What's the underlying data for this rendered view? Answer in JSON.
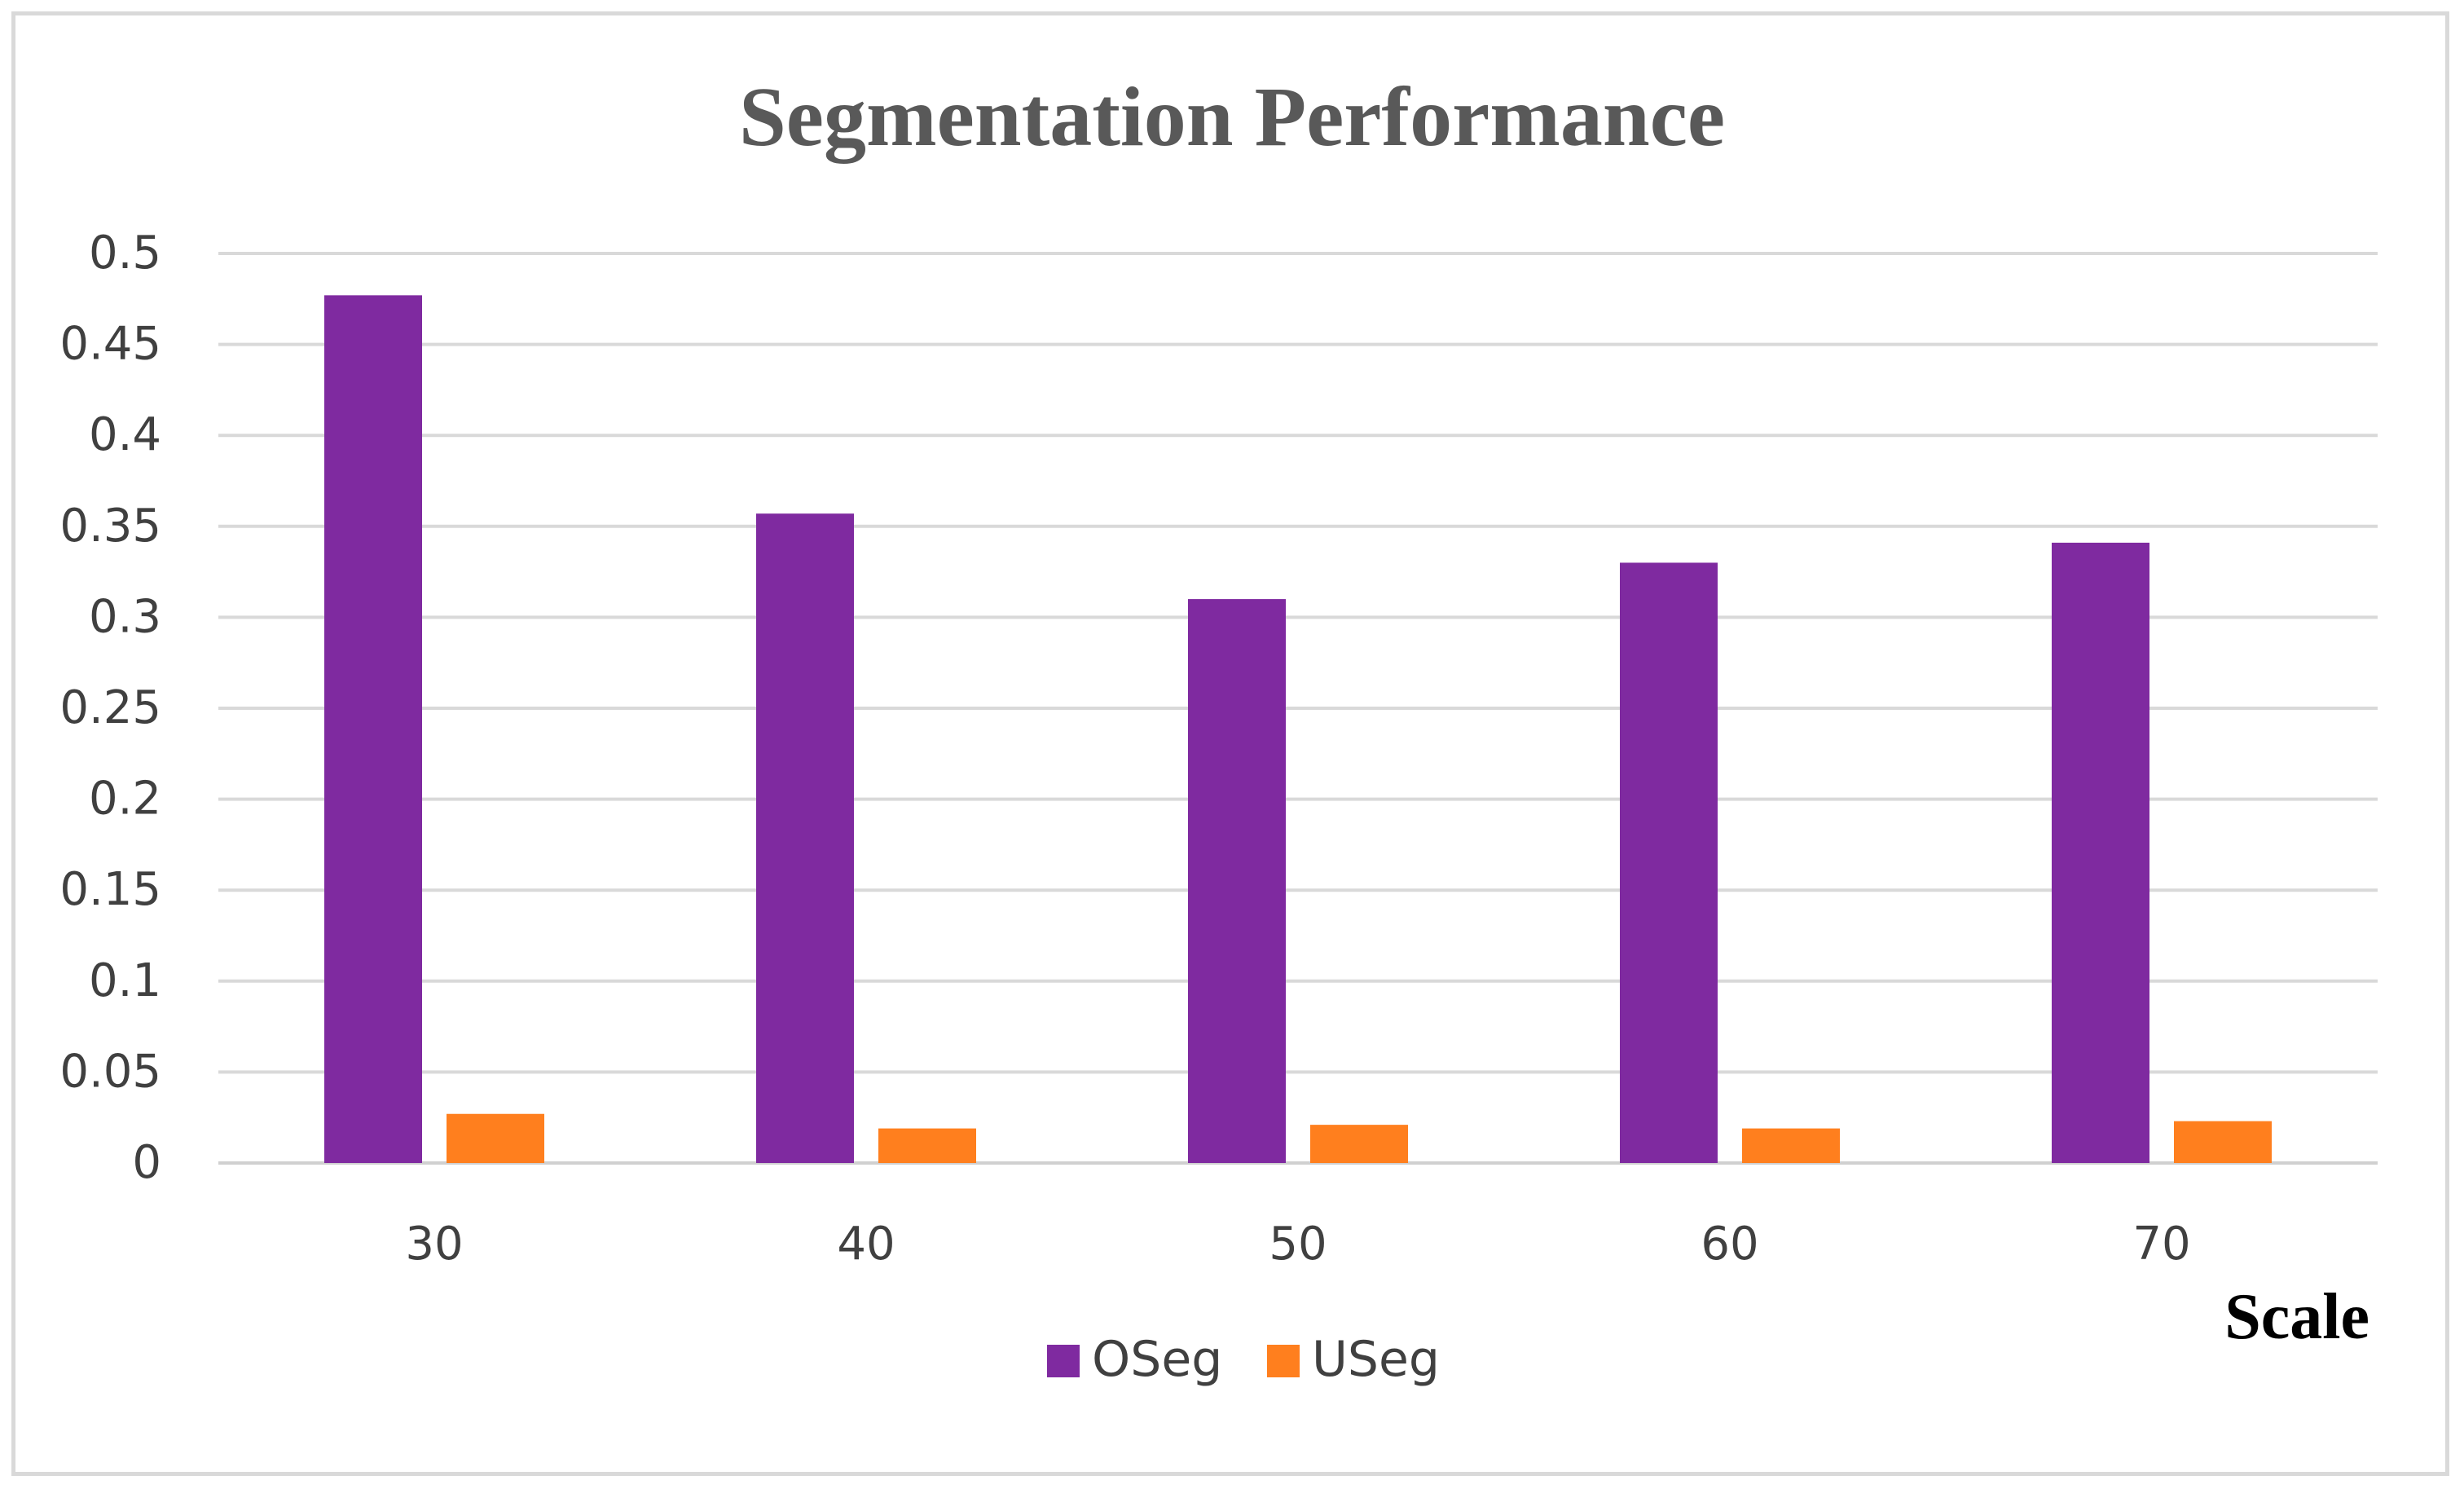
{
  "chart_data": {
    "type": "bar",
    "title": "Segmentation Performance",
    "xlabel": "Scale",
    "ylabel": "",
    "categories": [
      "30",
      "40",
      "50",
      "60",
      "70"
    ],
    "series": [
      {
        "name": "OSeg",
        "color": "#7f2aa0",
        "values": [
          0.477,
          0.357,
          0.31,
          0.33,
          0.341
        ]
      },
      {
        "name": "USeg",
        "color": "#ff7f1e",
        "values": [
          0.027,
          0.019,
          0.021,
          0.019,
          0.023
        ]
      }
    ],
    "ylim": [
      0,
      0.5
    ],
    "yticks": [
      "0",
      "0.05",
      "0.1",
      "0.15",
      "0.2",
      "0.25",
      "0.3",
      "0.35",
      "0.4",
      "0.45",
      "0.5"
    ],
    "grid": true,
    "legend_position": "bottom"
  }
}
